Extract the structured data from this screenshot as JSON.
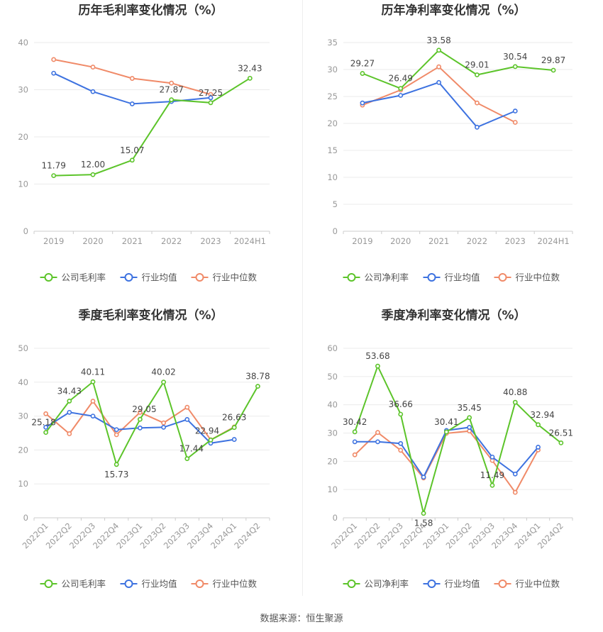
{
  "source_text": "数据来源：恒生聚源",
  "colors": {
    "company": "#5cc42a",
    "avg": "#3d72e0",
    "median": "#f08a68"
  },
  "chart_data": [
    {
      "type": "line",
      "title": "历年毛利率变化情况（%）",
      "categories": [
        "2019",
        "2020",
        "2021",
        "2022",
        "2023",
        "2024H1"
      ],
      "ylim": [
        0,
        40
      ],
      "yticks": [
        0,
        10,
        20,
        30,
        40
      ],
      "legend": [
        "公司毛利率",
        "行业均值",
        "行业中位数"
      ],
      "legend_position": "bottom",
      "series": [
        {
          "name": "公司毛利率",
          "values": [
            11.79,
            12.0,
            15.07,
            27.87,
            27.25,
            32.43
          ],
          "labels": [
            "11.79",
            "12.00",
            "15.07",
            "27.87",
            "27.25",
            "32.43"
          ]
        },
        {
          "name": "行业均值",
          "values": [
            33.5,
            29.6,
            27.0,
            27.5,
            28.3,
            null
          ]
        },
        {
          "name": "行业中位数",
          "values": [
            36.4,
            34.8,
            32.4,
            31.4,
            29.0,
            null
          ]
        }
      ]
    },
    {
      "type": "line",
      "title": "历年净利率变化情况（%）",
      "categories": [
        "2019",
        "2020",
        "2021",
        "2022",
        "2023",
        "2024H1"
      ],
      "ylim": [
        0,
        35
      ],
      "yticks": [
        0,
        5,
        10,
        15,
        20,
        25,
        30,
        35
      ],
      "legend": [
        "公司净利率",
        "行业均值",
        "行业中位数"
      ],
      "legend_position": "bottom",
      "series": [
        {
          "name": "公司净利率",
          "values": [
            29.27,
            26.49,
            33.58,
            29.01,
            30.54,
            29.87
          ],
          "labels": [
            "29.27",
            "26.49",
            "33.58",
            "29.01",
            "30.54",
            "29.87"
          ]
        },
        {
          "name": "行业均值",
          "values": [
            23.8,
            25.2,
            27.6,
            19.3,
            22.3,
            null
          ]
        },
        {
          "name": "行业中位数",
          "values": [
            23.4,
            26.2,
            30.5,
            23.8,
            20.2,
            null
          ]
        }
      ]
    },
    {
      "type": "line",
      "title": "季度毛利率变化情况（%）",
      "categories": [
        "2022Q1",
        "2022Q2",
        "2022Q3",
        "2022Q4",
        "2023Q1",
        "2023Q2",
        "2023Q3",
        "2023Q4",
        "2024Q1",
        "2024Q2"
      ],
      "ylim": [
        0,
        50
      ],
      "yticks": [
        0,
        10,
        20,
        30,
        40,
        50
      ],
      "legend": [
        "公司毛利率",
        "行业均值",
        "行业中位数"
      ],
      "legend_position": "bottom",
      "series": [
        {
          "name": "公司毛利率",
          "values": [
            25.18,
            34.43,
            40.11,
            15.73,
            29.05,
            40.02,
            17.44,
            22.94,
            26.63,
            38.78
          ],
          "labels": [
            "25.18",
            "34.43",
            "40.11",
            "15.73",
            "29.05",
            "40.02",
            "17.44",
            "22.94",
            "26.63",
            "38.78"
          ]
        },
        {
          "name": "行业均值",
          "values": [
            26.7,
            31.1,
            30.0,
            26.0,
            26.5,
            26.7,
            29.0,
            22.0,
            23.1,
            null
          ]
        },
        {
          "name": "行业中位数",
          "values": [
            30.7,
            24.8,
            34.4,
            24.5,
            31.1,
            28.0,
            32.6,
            23.0,
            26.8,
            null
          ]
        }
      ]
    },
    {
      "type": "line",
      "title": "季度净利率变化情况（%）",
      "categories": [
        "2022Q1",
        "2022Q2",
        "2022Q3",
        "2022Q4",
        "2023Q1",
        "2023Q2",
        "2023Q3",
        "2023Q4",
        "2024Q1",
        "2024Q2"
      ],
      "ylim": [
        0,
        60
      ],
      "yticks": [
        0,
        10,
        20,
        30,
        40,
        50,
        60
      ],
      "legend": [
        "公司净利率",
        "行业均值",
        "行业中位数"
      ],
      "legend_position": "bottom",
      "series": [
        {
          "name": "公司净利率",
          "values": [
            30.42,
            53.68,
            36.66,
            1.58,
            30.41,
            35.45,
            11.49,
            40.88,
            32.94,
            26.51
          ],
          "labels": [
            "30.42",
            "53.68",
            "36.66",
            "1.58",
            "30.41",
            "35.45",
            "11.49",
            "40.88",
            "32.94",
            "26.51"
          ]
        },
        {
          "name": "行业均值",
          "values": [
            26.9,
            26.9,
            26.3,
            14.4,
            30.9,
            32.0,
            21.5,
            15.5,
            25.0,
            null
          ]
        },
        {
          "name": "行业中位数",
          "values": [
            22.3,
            30.2,
            23.9,
            14.1,
            29.9,
            30.7,
            20.3,
            9.0,
            24.0,
            null
          ]
        }
      ]
    }
  ]
}
